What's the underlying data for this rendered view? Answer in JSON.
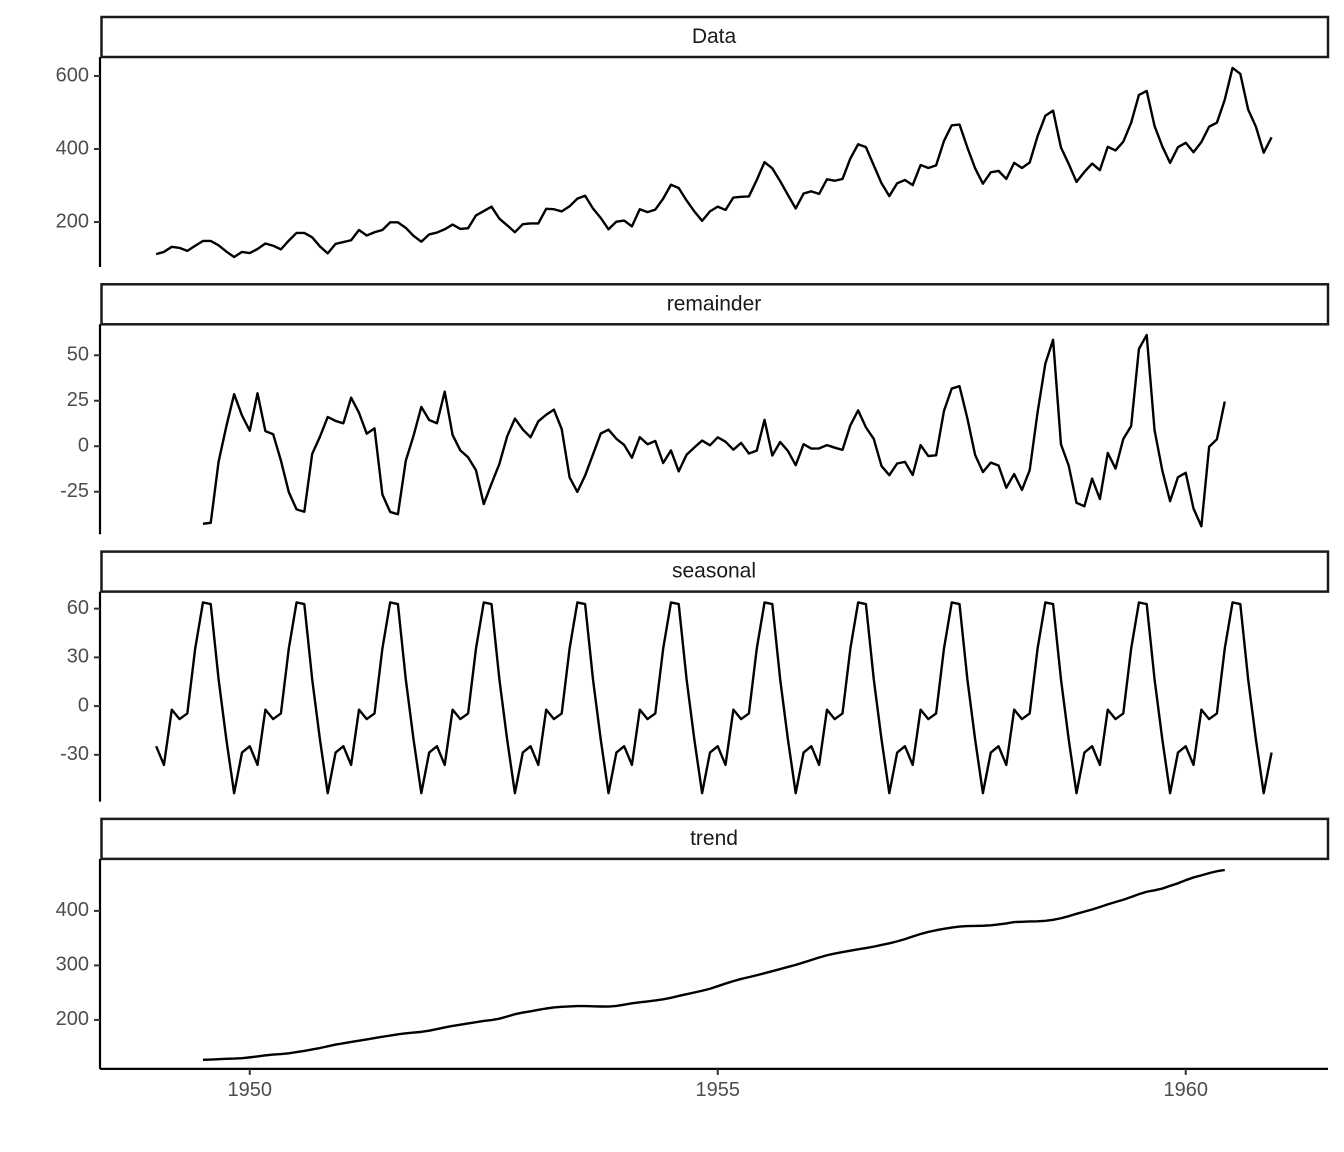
{
  "chart_data": [
    {
      "type": "line",
      "title": "Data",
      "color": "#000000",
      "x": [
        1949,
        1949.083,
        1949.167,
        1949.25,
        1949.333,
        1949.417,
        1949.5,
        1949.583,
        1949.667,
        1949.75,
        1949.833,
        1949.917,
        1950,
        1950.083,
        1950.167,
        1950.25,
        1950.333,
        1950.417,
        1950.5,
        1950.583,
        1950.667,
        1950.75,
        1950.833,
        1950.917,
        1951,
        1951.083,
        1951.167,
        1951.25,
        1951.333,
        1951.417,
        1951.5,
        1951.583,
        1951.667,
        1951.75,
        1951.833,
        1951.917,
        1952,
        1952.083,
        1952.167,
        1952.25,
        1952.333,
        1952.417,
        1952.5,
        1952.583,
        1952.667,
        1952.75,
        1952.833,
        1952.917,
        1953,
        1953.083,
        1953.167,
        1953.25,
        1953.333,
        1953.417,
        1953.5,
        1953.583,
        1953.667,
        1953.75,
        1953.833,
        1953.917,
        1954,
        1954.083,
        1954.167,
        1954.25,
        1954.333,
        1954.417,
        1954.5,
        1954.583,
        1954.667,
        1954.75,
        1954.833,
        1954.917,
        1955,
        1955.083,
        1955.167,
        1955.25,
        1955.333,
        1955.417,
        1955.5,
        1955.583,
        1955.667,
        1955.75,
        1955.833,
        1955.917,
        1956,
        1956.083,
        1956.167,
        1956.25,
        1956.333,
        1956.417,
        1956.5,
        1956.583,
        1956.667,
        1956.75,
        1956.833,
        1956.917,
        1957,
        1957.083,
        1957.167,
        1957.25,
        1957.333,
        1957.417,
        1957.5,
        1957.583,
        1957.667,
        1957.75,
        1957.833,
        1957.917,
        1958,
        1958.083,
        1958.167,
        1958.25,
        1958.333,
        1958.417,
        1958.5,
        1958.583,
        1958.667,
        1958.75,
        1958.833,
        1958.917,
        1959,
        1959.083,
        1959.167,
        1959.25,
        1959.333,
        1959.417,
        1959.5,
        1959.583,
        1959.667,
        1959.75,
        1959.833,
        1959.917,
        1960,
        1960.083,
        1960.167,
        1960.25,
        1960.333,
        1960.417,
        1960.5,
        1960.583,
        1960.667,
        1960.75,
        1960.833,
        1960.917
      ],
      "values": [
        112,
        118,
        132,
        129,
        121,
        135,
        148,
        148,
        136,
        119,
        104,
        118,
        115,
        126,
        141,
        135,
        125,
        149,
        170,
        170,
        158,
        133,
        114,
        140,
        145,
        150,
        178,
        163,
        172,
        178,
        199,
        199,
        184,
        162,
        146,
        166,
        171,
        180,
        193,
        181,
        183,
        218,
        230,
        242,
        209,
        191,
        172,
        194,
        196,
        196,
        236,
        235,
        229,
        243,
        264,
        272,
        237,
        211,
        180,
        201,
        204,
        188,
        235,
        227,
        234,
        264,
        302,
        293,
        259,
        229,
        203,
        229,
        242,
        233,
        267,
        269,
        270,
        315,
        364,
        347,
        312,
        274,
        237,
        278,
        284,
        277,
        317,
        313,
        318,
        374,
        413,
        405,
        355,
        306,
        271,
        306,
        315,
        301,
        356,
        348,
        355,
        422,
        465,
        467,
        404,
        347,
        305,
        336,
        340,
        318,
        362,
        348,
        363,
        435,
        491,
        505,
        404,
        359,
        310,
        337,
        360,
        342,
        406,
        396,
        420,
        472,
        548,
        559,
        463,
        407,
        362,
        405,
        417,
        391,
        419,
        461,
        472,
        535,
        622,
        606,
        508,
        461,
        390,
        432
      ],
      "xlim": [
        1948.4,
        1961.52
      ],
      "ylim": [
        76.7,
        652
      ],
      "yticks": [
        200,
        400,
        600
      ]
    },
    {
      "type": "line",
      "title": "remainder",
      "color": "#000000",
      "x": [
        1949.5,
        1949.583,
        1949.667,
        1949.75,
        1949.833,
        1949.917,
        1950,
        1950.083,
        1950.167,
        1950.25,
        1950.333,
        1950.417,
        1950.5,
        1950.583,
        1950.667,
        1950.75,
        1950.833,
        1950.917,
        1951,
        1951.083,
        1951.167,
        1951.25,
        1951.333,
        1951.417,
        1951.5,
        1951.583,
        1951.667,
        1951.75,
        1951.833,
        1951.917,
        1952,
        1952.083,
        1952.167,
        1952.25,
        1952.333,
        1952.417,
        1952.5,
        1952.583,
        1952.667,
        1952.75,
        1952.833,
        1952.917,
        1953,
        1953.083,
        1953.167,
        1953.25,
        1953.333,
        1953.417,
        1953.5,
        1953.583,
        1953.667,
        1953.75,
        1953.833,
        1953.917,
        1954,
        1954.083,
        1954.167,
        1954.25,
        1954.333,
        1954.417,
        1954.5,
        1954.583,
        1954.667,
        1954.75,
        1954.833,
        1954.917,
        1955,
        1955.083,
        1955.167,
        1955.25,
        1955.333,
        1955.417,
        1955.5,
        1955.583,
        1955.667,
        1955.75,
        1955.833,
        1955.917,
        1956,
        1956.083,
        1956.167,
        1956.25,
        1956.333,
        1956.417,
        1956.5,
        1956.583,
        1956.667,
        1956.75,
        1956.833,
        1956.917,
        1957,
        1957.083,
        1957.167,
        1957.25,
        1957.333,
        1957.417,
        1957.5,
        1957.583,
        1957.667,
        1957.75,
        1957.833,
        1957.917,
        1958,
        1958.083,
        1958.167,
        1958.25,
        1958.333,
        1958.417,
        1958.5,
        1958.583,
        1958.667,
        1958.75,
        1958.833,
        1958.917,
        1959,
        1959.083,
        1959.167,
        1959.25,
        1959.333,
        1959.417,
        1959.5,
        1959.583,
        1959.667,
        1959.75,
        1959.833,
        1959.917,
        1960,
        1960.083,
        1960.167,
        1960.25,
        1960.333,
        1960.417
      ],
      "values": [
        -42.6,
        -42.1,
        -8.5,
        11.0,
        28.6,
        16.9,
        8.5,
        29.1,
        8.3,
        6.6,
        -7.9,
        -25.2,
        -34.7,
        -36.0,
        -4.2,
        5.2,
        16.1,
        13.9,
        12.6,
        26.7,
        18.4,
        6.9,
        9.8,
        -26.5,
        -36.1,
        -37.4,
        -8.0,
        5.8,
        21.6,
        14.4,
        12.6,
        30.0,
        6.2,
        -2.3,
        -6.1,
        -13.2,
        -31.8,
        -20.6,
        -9.7,
        5.4,
        15.2,
        9.2,
        4.9,
        13.7,
        17.3,
        20.1,
        9.4,
        -17.1,
        -25.1,
        -16.1,
        -4.5,
        7.0,
        9.1,
        4.1,
        0.7,
        -6.3,
        5.0,
        1.1,
        2.9,
        -9.2,
        -2.3,
        -13.8,
        -4.7,
        -0.7,
        3.1,
        0.5,
        4.9,
        2.5,
        -1.9,
        1.8,
        -4.0,
        -2.4,
        14.5,
        -5.1,
        2.3,
        -2.6,
        -10.4,
        1.1,
        -1.3,
        -1.2,
        0.6,
        -0.8,
        -2.0,
        11.5,
        19.7,
        10.4,
        4.0,
        -10.9,
        -15.9,
        -9.5,
        -8.6,
        -15.8,
        0.6,
        -5.4,
        -5.0,
        19.4,
        31.7,
        33.0,
        15.3,
        -4.8,
        -14.2,
        -9.0,
        -10.6,
        -22.8,
        -15.3,
        -24.0,
        -13.2,
        18.6,
        45.4,
        58.5,
        1.0,
        -10.7,
        -31.1,
        -33.0,
        -17.8,
        -29.0,
        -3.7,
        -12.3,
        4.0,
        11.1,
        53.5,
        61.1,
        8.8,
        -13.4,
        -30.2,
        -17.0,
        -14.6,
        -34.2,
        -44.0,
        -0.3,
        3.8,
        24.6
      ],
      "xlim": [
        1948.4,
        1961.52
      ],
      "ylim": [
        -48.4,
        67
      ],
      "yticks": [
        -25,
        0,
        25,
        50
      ]
    },
    {
      "type": "line",
      "title": "seasonal",
      "color": "#000000",
      "x": [
        1949,
        1949.083,
        1949.167,
        1949.25,
        1949.333,
        1949.417,
        1949.5,
        1949.583,
        1949.667,
        1949.75,
        1949.833,
        1949.917,
        1950,
        1950.083,
        1950.167,
        1950.25,
        1950.333,
        1950.417,
        1950.5,
        1950.583,
        1950.667,
        1950.75,
        1950.833,
        1950.917,
        1951,
        1951.083,
        1951.167,
        1951.25,
        1951.333,
        1951.417,
        1951.5,
        1951.583,
        1951.667,
        1951.75,
        1951.833,
        1951.917,
        1952,
        1952.083,
        1952.167,
        1952.25,
        1952.333,
        1952.417,
        1952.5,
        1952.583,
        1952.667,
        1952.75,
        1952.833,
        1952.917,
        1953,
        1953.083,
        1953.167,
        1953.25,
        1953.333,
        1953.417,
        1953.5,
        1953.583,
        1953.667,
        1953.75,
        1953.833,
        1953.917,
        1954,
        1954.083,
        1954.167,
        1954.25,
        1954.333,
        1954.417,
        1954.5,
        1954.583,
        1954.667,
        1954.75,
        1954.833,
        1954.917,
        1955,
        1955.083,
        1955.167,
        1955.25,
        1955.333,
        1955.417,
        1955.5,
        1955.583,
        1955.667,
        1955.75,
        1955.833,
        1955.917,
        1956,
        1956.083,
        1956.167,
        1956.25,
        1956.333,
        1956.417,
        1956.5,
        1956.583,
        1956.667,
        1956.75,
        1956.833,
        1956.917,
        1957,
        1957.083,
        1957.167,
        1957.25,
        1957.333,
        1957.417,
        1957.5,
        1957.583,
        1957.667,
        1957.75,
        1957.833,
        1957.917,
        1958,
        1958.083,
        1958.167,
        1958.25,
        1958.333,
        1958.417,
        1958.5,
        1958.583,
        1958.667,
        1958.75,
        1958.833,
        1958.917,
        1959,
        1959.083,
        1959.167,
        1959.25,
        1959.333,
        1959.417,
        1959.5,
        1959.583,
        1959.667,
        1959.75,
        1959.833,
        1959.917,
        1960,
        1960.083,
        1960.167,
        1960.25,
        1960.333,
        1960.417,
        1960.5,
        1960.583,
        1960.667,
        1960.75,
        1960.833,
        1960.917
      ],
      "values": [
        -24.7,
        -36.2,
        -2.2,
        -8,
        -4.5,
        35.4,
        63.8,
        62.8,
        16.5,
        -20.6,
        -53.6,
        -28.6,
        -24.7,
        -36.2,
        -2.2,
        -8,
        -4.5,
        35.4,
        63.8,
        62.8,
        16.5,
        -20.6,
        -53.6,
        -28.6,
        -24.7,
        -36.2,
        -2.2,
        -8,
        -4.5,
        35.4,
        63.8,
        62.8,
        16.5,
        -20.6,
        -53.6,
        -28.6,
        -24.7,
        -36.2,
        -2.2,
        -8,
        -4.5,
        35.4,
        63.8,
        62.8,
        16.5,
        -20.6,
        -53.6,
        -28.6,
        -24.7,
        -36.2,
        -2.2,
        -8,
        -4.5,
        35.4,
        63.8,
        62.8,
        16.5,
        -20.6,
        -53.6,
        -28.6,
        -24.7,
        -36.2,
        -2.2,
        -8,
        -4.5,
        35.4,
        63.8,
        62.8,
        16.5,
        -20.6,
        -53.6,
        -28.6,
        -24.7,
        -36.2,
        -2.2,
        -8,
        -4.5,
        35.4,
        63.8,
        62.8,
        16.5,
        -20.6,
        -53.6,
        -28.6,
        -24.7,
        -36.2,
        -2.2,
        -8,
        -4.5,
        35.4,
        63.8,
        62.8,
        16.5,
        -20.6,
        -53.6,
        -28.6,
        -24.7,
        -36.2,
        -2.2,
        -8,
        -4.5,
        35.4,
        63.8,
        62.8,
        16.5,
        -20.6,
        -53.6,
        -28.6,
        -24.7,
        -36.2,
        -2.2,
        -8,
        -4.5,
        35.4,
        63.8,
        62.8,
        16.5,
        -20.6,
        -53.6,
        -28.6,
        -24.7,
        -36.2,
        -2.2,
        -8,
        -4.5,
        35.4,
        63.8,
        62.8,
        16.5,
        -20.6,
        -53.6,
        -28.6,
        -24.7,
        -36.2,
        -2.2,
        -8,
        -4.5,
        35.4,
        63.8,
        62.8,
        16.5,
        -20.6,
        -53.6,
        -28.6
      ],
      "xlim": [
        1948.4,
        1961.52
      ],
      "ylim": [
        -58.8,
        70.5
      ],
      "yticks": [
        -30,
        0,
        30,
        60
      ]
    },
    {
      "type": "line",
      "title": "trend",
      "color": "#000000",
      "x": [
        1949.5,
        1949.583,
        1949.667,
        1949.75,
        1949.833,
        1949.917,
        1950,
        1950.083,
        1950.167,
        1950.25,
        1950.333,
        1950.417,
        1950.5,
        1950.583,
        1950.667,
        1950.75,
        1950.833,
        1950.917,
        1951,
        1951.083,
        1951.167,
        1951.25,
        1951.333,
        1951.417,
        1951.5,
        1951.583,
        1951.667,
        1951.75,
        1951.833,
        1951.917,
        1952,
        1952.083,
        1952.167,
        1952.25,
        1952.333,
        1952.417,
        1952.5,
        1952.583,
        1952.667,
        1952.75,
        1952.833,
        1952.917,
        1953,
        1953.083,
        1953.167,
        1953.25,
        1953.333,
        1953.417,
        1953.5,
        1953.583,
        1953.667,
        1953.75,
        1953.833,
        1953.917,
        1954,
        1954.083,
        1954.167,
        1954.25,
        1954.333,
        1954.417,
        1954.5,
        1954.583,
        1954.667,
        1954.75,
        1954.833,
        1954.917,
        1955,
        1955.083,
        1955.167,
        1955.25,
        1955.333,
        1955.417,
        1955.5,
        1955.583,
        1955.667,
        1955.75,
        1955.833,
        1955.917,
        1956,
        1956.083,
        1956.167,
        1956.25,
        1956.333,
        1956.417,
        1956.5,
        1956.583,
        1956.667,
        1956.75,
        1956.833,
        1956.917,
        1957,
        1957.083,
        1957.167,
        1957.25,
        1957.333,
        1957.417,
        1957.5,
        1957.583,
        1957.667,
        1957.75,
        1957.833,
        1957.917,
        1958,
        1958.083,
        1958.167,
        1958.25,
        1958.333,
        1958.417,
        1958.5,
        1958.583,
        1958.667,
        1958.75,
        1958.833,
        1958.917,
        1959,
        1959.083,
        1959.167,
        1959.25,
        1959.333,
        1959.417,
        1959.5,
        1959.583,
        1959.667,
        1959.75,
        1959.833,
        1959.917,
        1960,
        1960.083,
        1960.167,
        1960.25,
        1960.333,
        1960.417
      ],
      "values": [
        126.79,
        127.25,
        127.96,
        128.58,
        129.0,
        129.75,
        131.25,
        133.08,
        134.92,
        136.42,
        137.42,
        138.75,
        140.92,
        143.17,
        145.71,
        148.42,
        151.54,
        154.71,
        157.13,
        159.54,
        161.83,
        164.13,
        166.67,
        169.08,
        171.25,
        173.58,
        175.46,
        176.83,
        178.04,
        180.17,
        183.13,
        186.21,
        189.04,
        191.29,
        193.58,
        195.83,
        198.04,
        199.75,
        202.21,
        206.25,
        210.42,
        213.38,
        215.83,
        218.5,
        220.92,
        222.92,
        224.08,
        224.71,
        225.33,
        225.33,
        224.96,
        224.58,
        224.46,
        225.54,
        228,
        230.46,
        232.25,
        233.92,
        235.63,
        237.75,
        240.5,
        243.96,
        247.17,
        250.25,
        253.5,
        257.13,
        261.83,
        266.67,
        271.13,
        275.21,
        278.5,
        281.96,
        285.75,
        289.33,
        293.25,
        297.17,
        301,
        305.46,
        309.96,
        314.42,
        318.63,
        321.75,
        324.5,
        327.08,
        329.54,
        331.83,
        334.46,
        337.54,
        340.54,
        344.08,
        348.25,
        353,
        357.63,
        361.38,
        364.5,
        367.17,
        369.46,
        371.21,
        372.17,
        372.42,
        372.75,
        373.63,
        375.25,
        377.04,
        379.5,
        380,
        380.71,
        380.96,
        381.83,
        383.67,
        386.5,
        390.33,
        394.71,
        398.63,
        402.54,
        407.17,
        411.88,
        416.33,
        420.5,
        425.5,
        430.71,
        435.13,
        437.71,
        440.96,
        445.83,
        450.63,
        456.33,
        461.38,
        465.21,
        469.33,
        472.75,
        475.04
      ],
      "xlim": [
        1948.4,
        1961.52
      ],
      "ylim": [
        110.1,
        495.4
      ],
      "yticks": [
        200,
        300,
        400
      ],
      "xticks": [
        1950,
        1955,
        1960
      ]
    }
  ]
}
